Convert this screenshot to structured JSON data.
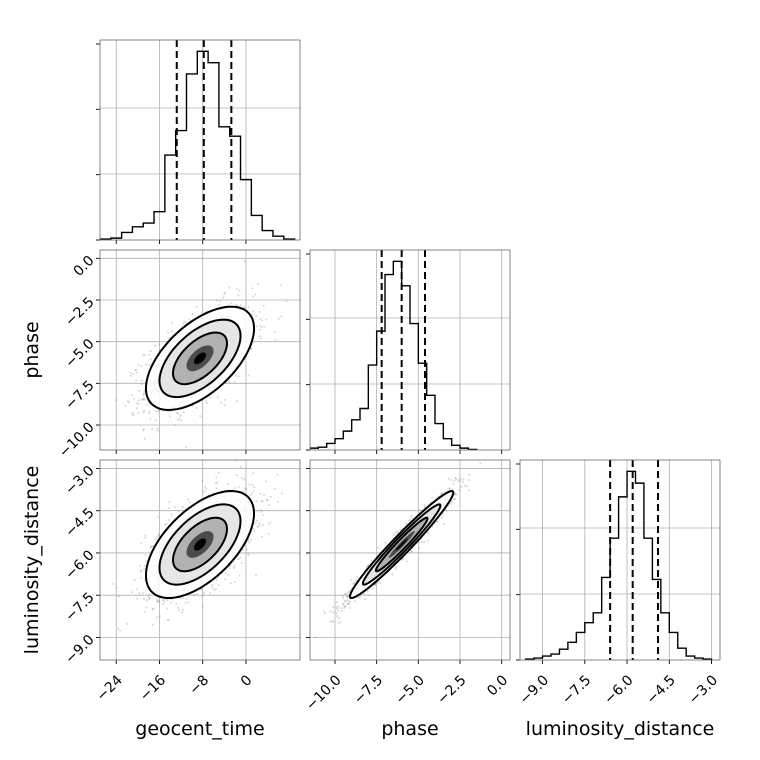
{
  "chart_data": {
    "type": "corner",
    "parameters": [
      "geocent_time",
      "phase",
      "luminosity_distance"
    ],
    "axis_labels": [
      "geocent_time",
      "phase",
      "luminosity_distance"
    ],
    "ranges": {
      "geocent_time": [
        -27,
        10
      ],
      "phase": [
        -11.5,
        0.5
      ],
      "luminosity_distance": [
        -9.8,
        -2.7
      ]
    },
    "ticks": {
      "geocent_time": [
        -24,
        -16,
        -8,
        0
      ],
      "phase": [
        -10.0,
        -7.5,
        -5.0,
        -2.5,
        0.0
      ],
      "luminosity_distance": [
        -9.0,
        -7.5,
        -6.0,
        -4.5,
        -3.0
      ]
    },
    "tick_labels": {
      "geocent_time": [
        "−24",
        "−16",
        "−8",
        "0"
      ],
      "phase": [
        "−10.0",
        "−7.5",
        "−5.0",
        "−2.5",
        "0.0"
      ],
      "luminosity_distance": [
        "−9.0",
        "−7.5",
        "−6.0",
        "−4.5",
        "−3.0"
      ]
    },
    "quantiles": {
      "geocent_time": [
        -12.8,
        -7.8,
        -2.7
      ],
      "phase": [
        -7.2,
        -6.0,
        -4.6
      ],
      "luminosity_distance": [
        -6.6,
        -5.8,
        -4.9
      ]
    },
    "marginals": {
      "geocent_time": {
        "bin_edges": [
          -27,
          -25,
          -23,
          -21,
          -19,
          -17,
          -15,
          -13,
          -11,
          -9,
          -7,
          -5,
          -3,
          -1,
          1,
          3,
          5,
          7,
          9
        ],
        "counts": [
          0.005,
          0.01,
          0.04,
          0.07,
          0.09,
          0.15,
          0.45,
          0.58,
          0.88,
          1.0,
          0.94,
          0.6,
          0.55,
          0.32,
          0.13,
          0.05,
          0.02,
          0.005
        ]
      },
      "phase": {
        "bin_edges": [
          -11.5,
          -11.0,
          -10.5,
          -10.0,
          -9.5,
          -9.0,
          -8.5,
          -8.0,
          -7.5,
          -7.0,
          -6.5,
          -6.0,
          -5.5,
          -5.0,
          -4.5,
          -4.0,
          -3.5,
          -3.0,
          -2.5,
          -2.0,
          -1.5
        ],
        "counts": [
          0.01,
          0.015,
          0.035,
          0.06,
          0.1,
          0.16,
          0.22,
          0.45,
          0.63,
          0.93,
          1.0,
          0.87,
          0.67,
          0.46,
          0.29,
          0.14,
          0.06,
          0.025,
          0.01,
          0.003
        ]
      },
      "luminosity_distance": {
        "bin_edges": [
          -9.6,
          -9.3,
          -9.0,
          -8.7,
          -8.4,
          -8.1,
          -7.8,
          -7.5,
          -7.2,
          -6.9,
          -6.6,
          -6.3,
          -6.0,
          -5.7,
          -5.4,
          -5.1,
          -4.8,
          -4.5,
          -4.2,
          -3.9,
          -3.6,
          -3.3,
          -3.0
        ],
        "counts": [
          0.005,
          0.01,
          0.02,
          0.03,
          0.055,
          0.09,
          0.14,
          0.19,
          0.24,
          0.42,
          0.62,
          0.83,
          0.96,
          0.9,
          0.62,
          0.41,
          0.24,
          0.14,
          0.06,
          0.02,
          0.01,
          0.005
        ]
      }
    },
    "joint": [
      {
        "x": "geocent_time",
        "y": "phase",
        "mean": [
          -8.5,
          -6.0
        ],
        "std": [
          5.0,
          1.55
        ],
        "corr": 0.58
      },
      {
        "x": "geocent_time",
        "y": "luminosity_distance",
        "mean": [
          -8.5,
          -5.7
        ],
        "std": [
          5.0,
          0.95
        ],
        "corr": 0.58
      },
      {
        "x": "phase",
        "y": "luminosity_distance",
        "mean": [
          -6.0,
          -5.7
        ],
        "std": [
          1.55,
          0.95
        ],
        "corr": 0.97
      }
    ],
    "contour_levels_sigma": [
      0.5,
      1.0,
      1.5,
      2.0
    ],
    "grid": true,
    "colors": {
      "line": "#000000",
      "grid": "#b0b0b0",
      "scatter": "#8a8a8a"
    }
  }
}
